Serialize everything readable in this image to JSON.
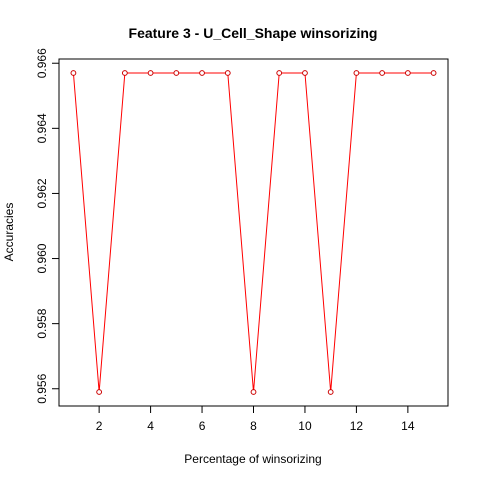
{
  "chart_data": {
    "type": "line",
    "title": "Feature 3 - U_Cell_Shape winsorizing",
    "xlabel": "Percentage of winsorizing",
    "ylabel": "Accuracies",
    "x": [
      1,
      2,
      3,
      4,
      5,
      6,
      7,
      8,
      9,
      10,
      11,
      12,
      13,
      14,
      15
    ],
    "series": [
      {
        "values": [
          0.9657,
          0.9559,
          0.9657,
          0.9657,
          0.9657,
          0.9657,
          0.9657,
          0.9559,
          0.9657,
          0.9657,
          0.9559,
          0.9657,
          0.9657,
          0.9657,
          0.9657
        ],
        "color": "#ff0000",
        "point_color": "#cc0000"
      }
    ],
    "xlim": [
      0.44,
      15.56
    ],
    "ylim": [
      0.95547,
      0.96613
    ],
    "xticks": [
      2,
      4,
      6,
      8,
      10,
      12,
      14
    ],
    "yticks": [
      0.956,
      0.958,
      0.96,
      0.962,
      0.964,
      0.966
    ],
    "xtick_labels": [
      "2",
      "4",
      "6",
      "8",
      "10",
      "12",
      "14"
    ],
    "ytick_labels": [
      "0.956",
      "0.958",
      "0.960",
      "0.962",
      "0.964",
      "0.966"
    ],
    "grid": false,
    "legend": "none"
  }
}
